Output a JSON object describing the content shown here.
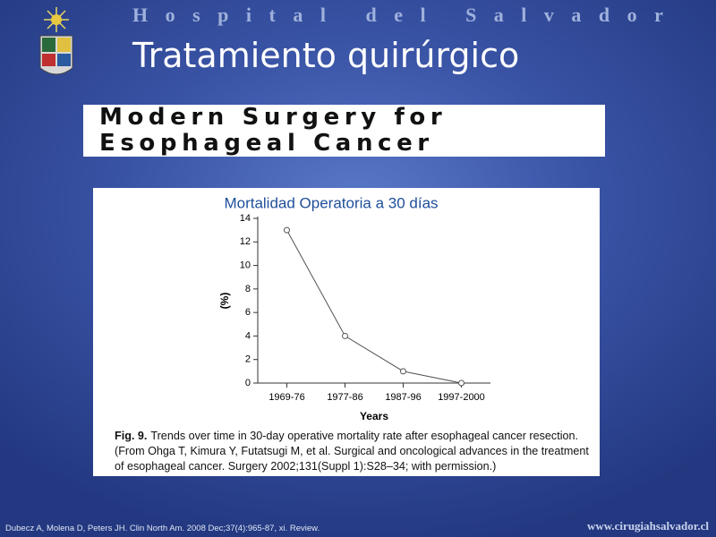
{
  "header": {
    "institution": "Hospital del Salvador",
    "title": "Tratamiento quirúrgico"
  },
  "banner": {
    "lines": [
      "Modern Surgery for",
      "Esophageal Cancer"
    ]
  },
  "chart_data": {
    "type": "line",
    "title": "Mortalidad Operatoria a 30 días",
    "categories": [
      "1969-76",
      "1977-86",
      "1987-96",
      "1997-2000"
    ],
    "values": [
      13,
      4,
      1,
      0
    ],
    "color": "#555555",
    "ylim": [
      0,
      14
    ],
    "yticks": [
      0,
      2,
      4,
      6,
      8,
      10,
      12,
      14
    ],
    "ylabel": "(%)",
    "xlabel": "Years",
    "grid": false
  },
  "caption": {
    "label": "Fig. 9.",
    "text": "Trends over time in 30-day operative mortality rate after esophageal cancer resection. (From Ohga T, Kimura Y, Futatsugi M, et al. Surgical and oncological advances in the treatment of esophageal cancer. Surgery 2002;131(Suppl 1):S28–34; with permission.)"
  },
  "footer": {
    "reference": "Dubecz A, Molena D, Peters JH.  Clin North Am. 2008 Dec;37(4):965-87, xi. Review.",
    "website": "www.cirugiahsalvador.cl"
  }
}
